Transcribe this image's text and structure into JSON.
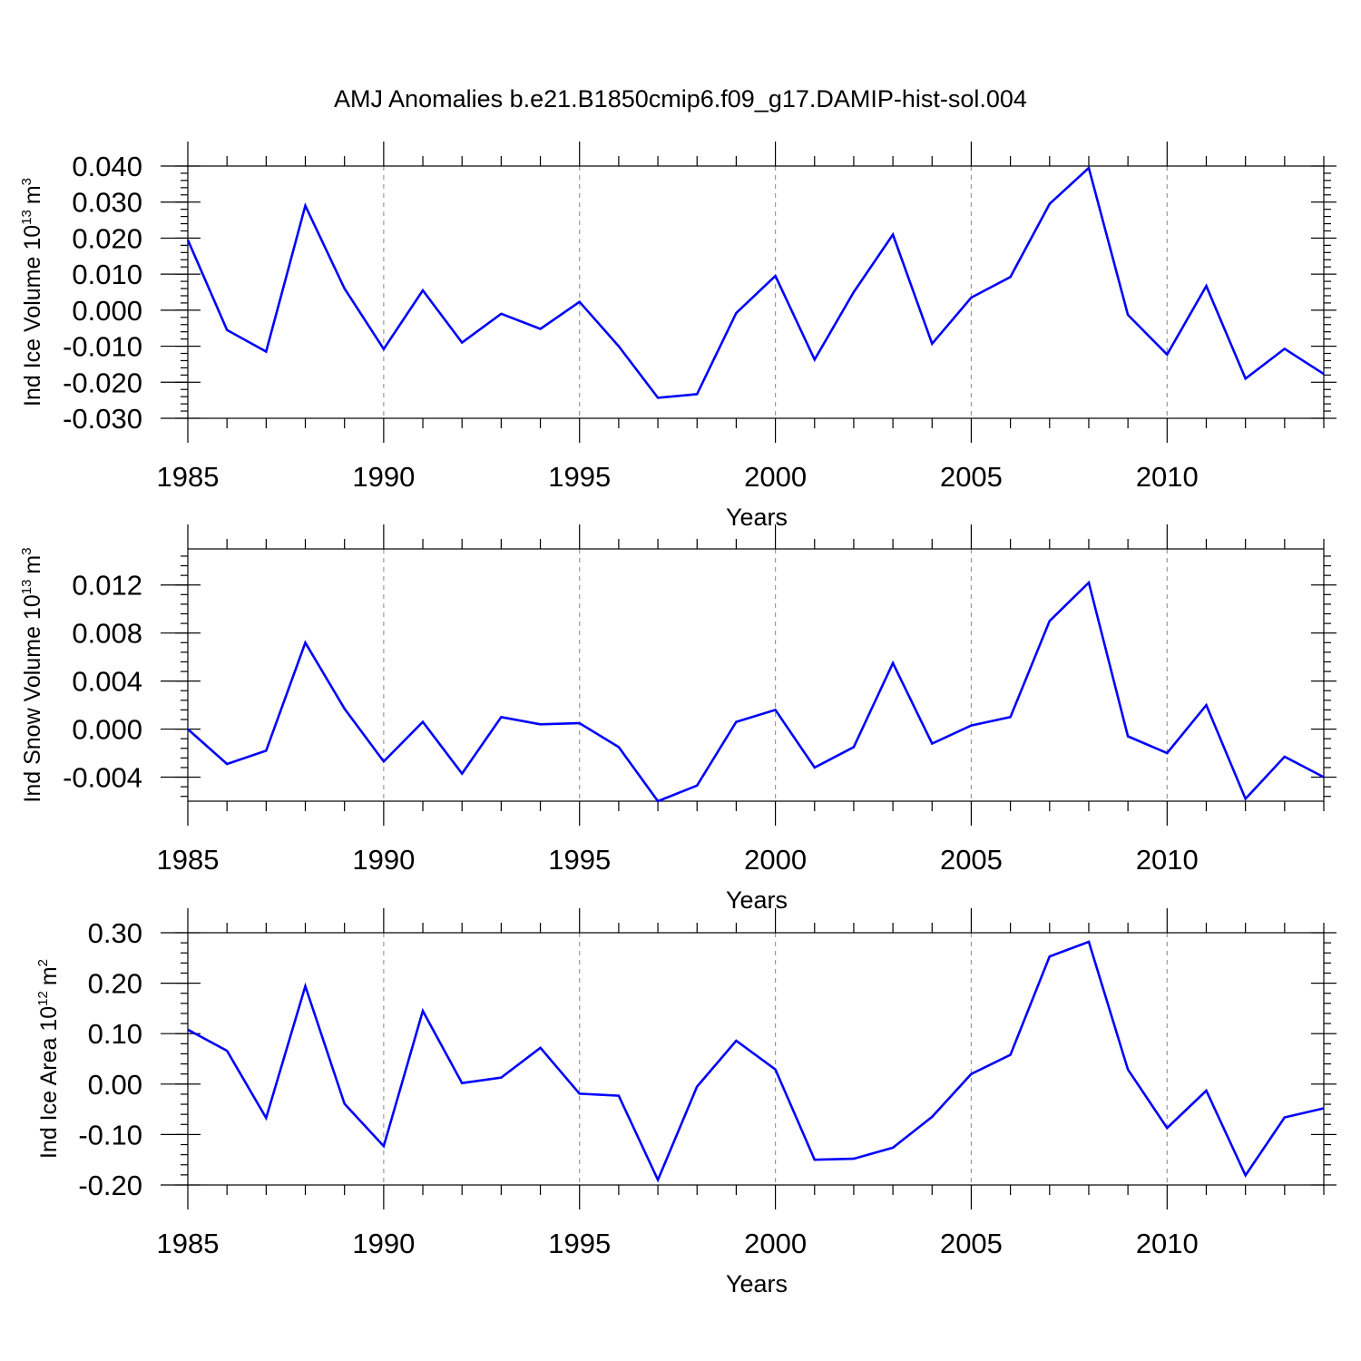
{
  "title": "AMJ Anomalies b.e21.B1850cmip6.f09_g17.DAMIP-hist-sol.004",
  "colors": {
    "line": "#0000ff",
    "axis": "#000000",
    "grid": "#999999"
  },
  "chart_data": [
    {
      "type": "line",
      "ylabel_main": "Ind Ice Volume 10",
      "ylabel_exp": "13",
      "ylabel_unit": "m",
      "ylabel_unit_exp": "3",
      "xlabel": "Years",
      "xlim": [
        1985,
        2014
      ],
      "ylim": [
        -0.03,
        0.04
      ],
      "yticks": [
        -0.03,
        -0.02,
        -0.01,
        0.0,
        0.01,
        0.02,
        0.03,
        0.04
      ],
      "ytick_labels": [
        "-0.030",
        "-0.020",
        "-0.010",
        "0.000",
        "0.010",
        "0.020",
        "0.030",
        "0.040"
      ],
      "xticks": [
        1985,
        1990,
        1995,
        2000,
        2005,
        2010
      ],
      "xtick_labels": [
        "1985",
        "1990",
        "1995",
        "2000",
        "2005",
        "2010"
      ],
      "grid": "vertical dashed at major x ticks",
      "x": [
        1985,
        1986,
        1987,
        1988,
        1989,
        1990,
        1991,
        1992,
        1993,
        1994,
        1995,
        1996,
        1997,
        1998,
        1999,
        2000,
        2001,
        2002,
        2003,
        2004,
        2005,
        2006,
        2007,
        2008,
        2009,
        2010,
        2011,
        2012,
        2013,
        2014
      ],
      "values": [
        0.0195,
        -0.0055,
        -0.0115,
        0.029,
        0.006,
        -0.0108,
        0.0055,
        -0.009,
        -0.001,
        -0.0052,
        0.0023,
        -0.01,
        -0.0243,
        -0.0233,
        -0.0008,
        0.0095,
        -0.0137,
        0.005,
        0.021,
        -0.0093,
        0.0035,
        0.0092,
        0.0295,
        0.0395,
        -0.0013,
        -0.0123,
        0.0067,
        -0.019,
        -0.0107,
        -0.0177
      ]
    },
    {
      "type": "line",
      "ylabel_main": "Ind Snow Volume 10",
      "ylabel_exp": "13",
      "ylabel_unit": "m",
      "ylabel_unit_exp": "3",
      "xlabel": "Years",
      "xlim": [
        1985,
        2014
      ],
      "ylim": [
        -0.006,
        0.015
      ],
      "yticks": [
        -0.004,
        0.0,
        0.004,
        0.008,
        0.012
      ],
      "ytick_labels": [
        "-0.004",
        "0.000",
        "0.004",
        "0.008",
        "0.012"
      ],
      "xticks": [
        1985,
        1990,
        1995,
        2000,
        2005,
        2010
      ],
      "xtick_labels": [
        "1985",
        "1990",
        "1995",
        "2000",
        "2005",
        "2010"
      ],
      "grid": "vertical dashed at major x ticks",
      "x": [
        1985,
        1986,
        1987,
        1988,
        1989,
        1990,
        1991,
        1992,
        1993,
        1994,
        1995,
        1996,
        1997,
        1998,
        1999,
        2000,
        2001,
        2002,
        2003,
        2004,
        2005,
        2006,
        2007,
        2008,
        2009,
        2010,
        2011,
        2012,
        2013,
        2014
      ],
      "values": [
        0.0,
        -0.0029,
        -0.0018,
        0.0072,
        0.0017,
        -0.0027,
        0.0006,
        -0.0037,
        0.001,
        0.0004,
        0.0005,
        -0.0015,
        -0.006,
        -0.0047,
        0.0006,
        0.0016,
        -0.0032,
        -0.0015,
        0.0055,
        -0.0012,
        0.0003,
        0.001,
        0.009,
        0.0122,
        -0.0006,
        -0.002,
        0.002,
        -0.0058,
        -0.0023,
        -0.004
      ]
    },
    {
      "type": "line",
      "ylabel_main": "Ind Ice Area 10",
      "ylabel_exp": "12",
      "ylabel_unit": "m",
      "ylabel_unit_exp": "2",
      "xlabel": "Years",
      "xlim": [
        1985,
        2014
      ],
      "ylim": [
        -0.2,
        0.3
      ],
      "yticks": [
        -0.2,
        -0.1,
        0.0,
        0.1,
        0.2,
        0.3
      ],
      "ytick_labels": [
        "-0.20",
        "-0.10",
        "0.00",
        "0.10",
        "0.20",
        "0.30"
      ],
      "xticks": [
        1985,
        1990,
        1995,
        2000,
        2005,
        2010
      ],
      "xtick_labels": [
        "1985",
        "1990",
        "1995",
        "2000",
        "2005",
        "2010"
      ],
      "grid": "vertical dashed at major x ticks",
      "x": [
        1985,
        1986,
        1987,
        1988,
        1989,
        1990,
        1991,
        1992,
        1993,
        1994,
        1995,
        1996,
        1997,
        1998,
        1999,
        2000,
        2001,
        2002,
        2003,
        2004,
        2005,
        2006,
        2007,
        2008,
        2009,
        2010,
        2011,
        2012,
        2013,
        2014
      ],
      "values": [
        0.108,
        0.066,
        -0.067,
        0.194,
        -0.039,
        -0.123,
        0.145,
        0.002,
        0.013,
        0.072,
        -0.019,
        -0.023,
        -0.19,
        -0.005,
        0.086,
        0.029,
        -0.15,
        -0.148,
        -0.126,
        -0.065,
        0.02,
        0.058,
        0.253,
        0.282,
        0.029,
        -0.087,
        -0.013,
        -0.181,
        -0.066,
        -0.048
      ]
    }
  ]
}
